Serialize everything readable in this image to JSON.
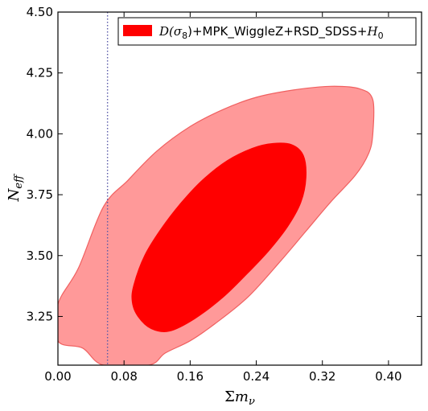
{
  "chart_data": {
    "type": "contour",
    "xlabel": "Σm_ν",
    "ylabel": "N_eff",
    "xlim": [
      0.0,
      0.44
    ],
    "ylim": [
      3.05,
      4.5
    ],
    "xticks": [
      "0.00",
      "0.08",
      "0.16",
      "0.24",
      "0.32",
      "0.40"
    ],
    "yticks": [
      "3.25",
      "3.50",
      "3.75",
      "4.00",
      "4.25",
      "4.50"
    ],
    "grid": false,
    "legend_position": "top-right",
    "reference_line": {
      "orientation": "vertical",
      "x": 0.06,
      "style": "dotted",
      "color": "#5a5aa8"
    },
    "series": [
      {
        "name": "D(σ8)+MPK_WiggleZ+RSD_SDSS+H0",
        "legend_text": {
          "prefix": "D(σ",
          "sub1": "8",
          "middle": ")+MPK_WiggleZ+RSD_SDSS+",
          "h": "H",
          "sub2": "0"
        },
        "color": "#ff0000",
        "contours": [
          {
            "level": "95%",
            "fill": "#ff9999",
            "edge": "#f06060",
            "points": [
              [
                0.0,
                3.3
              ],
              [
                0.025,
                3.45
              ],
              [
                0.055,
                3.7
              ],
              [
                0.085,
                3.81
              ],
              [
                0.12,
                3.93
              ],
              [
                0.16,
                4.03
              ],
              [
                0.2,
                4.1
              ],
              [
                0.24,
                4.15
              ],
              [
                0.285,
                4.18
              ],
              [
                0.33,
                4.195
              ],
              [
                0.365,
                4.185
              ],
              [
                0.381,
                4.14
              ],
              [
                0.381,
                4.0
              ],
              [
                0.376,
                3.92
              ],
              [
                0.36,
                3.83
              ],
              [
                0.33,
                3.72
              ],
              [
                0.3,
                3.6
              ],
              [
                0.27,
                3.48
              ],
              [
                0.23,
                3.33
              ],
              [
                0.19,
                3.22
              ],
              [
                0.16,
                3.15
              ],
              [
                0.13,
                3.1
              ],
              [
                0.11,
                3.05
              ],
              [
                0.055,
                3.05
              ],
              [
                0.03,
                3.12
              ],
              [
                0.0,
                3.15
              ]
            ]
          },
          {
            "level": "68%",
            "fill": "#ff0000",
            "edge": "#ff0000",
            "points": [
              [
                0.092,
                3.38
              ],
              [
                0.105,
                3.5
              ],
              [
                0.125,
                3.61
              ],
              [
                0.15,
                3.72
              ],
              [
                0.175,
                3.81
              ],
              [
                0.205,
                3.89
              ],
              [
                0.235,
                3.94
              ],
              [
                0.26,
                3.96
              ],
              [
                0.283,
                3.955
              ],
              [
                0.297,
                3.91
              ],
              [
                0.3,
                3.82
              ],
              [
                0.294,
                3.72
              ],
              [
                0.278,
                3.62
              ],
              [
                0.255,
                3.52
              ],
              [
                0.23,
                3.43
              ],
              [
                0.2,
                3.33
              ],
              [
                0.165,
                3.24
              ],
              [
                0.135,
                3.19
              ],
              [
                0.113,
                3.2
              ],
              [
                0.097,
                3.25
              ],
              [
                0.09,
                3.31
              ]
            ]
          }
        ]
      }
    ]
  }
}
